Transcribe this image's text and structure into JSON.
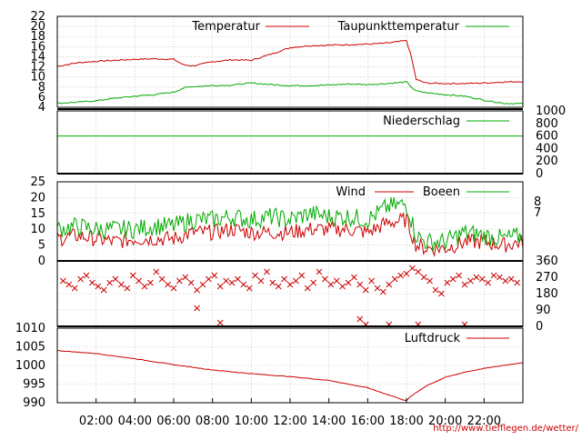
{
  "chart_data": [
    {
      "type": "line",
      "panel": "temperature",
      "ylim": [
        4,
        22
      ],
      "yticks": [
        "4",
        "6",
        "8",
        "10",
        "12",
        "14",
        "16",
        "18",
        "20",
        "22"
      ],
      "grid": true,
      "legend_position": "top-right",
      "x": [
        "00:00",
        "01:00",
        "02:00",
        "03:00",
        "04:00",
        "05:00",
        "06:00",
        "06:30",
        "07:00",
        "08:00",
        "09:00",
        "10:00",
        "11:00",
        "12:00",
        "13:00",
        "14:00",
        "15:00",
        "16:00",
        "17:00",
        "18:00",
        "18:15",
        "18:30",
        "19:00",
        "20:00",
        "21:00",
        "22:00",
        "23:00",
        "24:00"
      ],
      "series": [
        {
          "name": "Temperatur",
          "color": "#cc0000",
          "values": [
            12.1,
            12.8,
            13.1,
            13.3,
            13.5,
            13.6,
            13.5,
            12.4,
            12.2,
            13.0,
            13.4,
            13.3,
            14.5,
            15.8,
            16.2,
            16.3,
            16.4,
            16.5,
            16.7,
            17.2,
            14.0,
            9.5,
            8.8,
            8.7,
            8.7,
            8.8,
            9.0,
            9.1
          ]
        },
        {
          "name": "Taupunkttemperatur",
          "color": "#00aa00",
          "values": [
            4.8,
            5.0,
            5.3,
            5.8,
            6.2,
            6.5,
            7.0,
            7.8,
            8.1,
            8.3,
            8.4,
            8.8,
            8.5,
            8.3,
            8.3,
            8.4,
            8.6,
            8.5,
            8.7,
            9.0,
            8.0,
            7.2,
            6.9,
            6.5,
            6.2,
            5.4,
            4.8,
            4.7
          ]
        }
      ]
    },
    {
      "type": "line",
      "panel": "precipitation",
      "ylim": [
        0,
        1000
      ],
      "yticks": [
        "0",
        "200",
        "400",
        "600",
        "800",
        "1000"
      ],
      "grid": false,
      "legend_position": "top-right",
      "x": [
        "00:00",
        "24:00"
      ],
      "series": [
        {
          "name": "Niederschlag",
          "color": "#00aa00",
          "values": [
            600,
            600
          ]
        }
      ]
    },
    {
      "type": "line",
      "panel": "wind",
      "ylim": [
        0,
        25
      ],
      "yticks": [
        "0",
        "5",
        "10",
        "15",
        "20",
        "25"
      ],
      "right_labels": [
        "8",
        "7"
      ],
      "grid": true,
      "legend_position": "top-right",
      "x": [
        "00:00",
        "01:00",
        "02:00",
        "03:00",
        "04:00",
        "05:00",
        "06:00",
        "07:00",
        "08:00",
        "09:00",
        "10:00",
        "11:00",
        "12:00",
        "13:00",
        "14:00",
        "15:00",
        "16:00",
        "17:00",
        "18:00",
        "18:30",
        "19:00",
        "20:00",
        "21:00",
        "22:00",
        "23:00",
        "24:00"
      ],
      "series": [
        {
          "name": "Wind",
          "color": "#cc0000",
          "values": [
            7,
            8,
            7,
            6,
            7,
            7,
            7,
            9,
            9,
            10,
            9,
            9,
            9,
            10,
            10,
            10,
            9,
            12,
            13,
            5,
            4,
            4,
            6,
            6,
            5,
            6
          ]
        },
        {
          "name": "Boeen",
          "color": "#00aa00",
          "values": [
            10,
            11,
            10,
            10,
            10,
            11,
            11,
            13,
            13,
            14,
            13,
            14,
            13,
            15,
            14,
            14,
            13,
            17,
            18,
            8,
            6,
            6,
            9,
            8,
            7,
            8
          ]
        }
      ]
    },
    {
      "type": "scatter",
      "panel": "wind-direction",
      "ylim": [
        0,
        360
      ],
      "yticks_right": [
        "0",
        "90",
        "180",
        "270",
        "360"
      ],
      "series": [
        {
          "name": "",
          "color": "#cc0000",
          "x": [
            0.3,
            0.6,
            0.9,
            1.2,
            1.5,
            1.8,
            2.1,
            2.4,
            2.7,
            3.0,
            3.3,
            3.6,
            3.9,
            4.2,
            4.5,
            4.8,
            5.1,
            5.4,
            5.7,
            6.0,
            6.3,
            6.6,
            6.9,
            7.2,
            7.5,
            7.8,
            8.1,
            8.4,
            8.7,
            9.0,
            9.3,
            9.6,
            9.9,
            10.2,
            10.5,
            10.8,
            11.1,
            11.4,
            11.7,
            12.0,
            12.3,
            12.6,
            12.9,
            13.2,
            13.5,
            13.8,
            14.1,
            14.4,
            14.7,
            15.0,
            15.3,
            15.6,
            15.9,
            16.2,
            16.5,
            16.8,
            17.1,
            17.4,
            17.7,
            18.0,
            18.3,
            18.6,
            18.9,
            19.2,
            19.5,
            19.8,
            20.1,
            20.4,
            20.7,
            21.0,
            21.3,
            21.6,
            21.9,
            22.2,
            22.5,
            22.8,
            23.1,
            23.4,
            23.7,
            8.4,
            15.6,
            15.9,
            17.1,
            18.6,
            21.0,
            7.2
          ],
          "y": [
            250,
            230,
            210,
            260,
            280,
            240,
            220,
            200,
            240,
            260,
            230,
            210,
            280,
            250,
            220,
            240,
            300,
            260,
            230,
            210,
            250,
            270,
            240,
            200,
            230,
            260,
            280,
            220,
            250,
            240,
            260,
            230,
            210,
            280,
            250,
            300,
            240,
            220,
            260,
            230,
            250,
            280,
            210,
            240,
            300,
            260,
            230,
            250,
            220,
            240,
            270,
            230,
            200,
            250,
            210,
            190,
            230,
            260,
            280,
            290,
            320,
            300,
            270,
            250,
            200,
            180,
            240,
            260,
            280,
            230,
            250,
            270,
            260,
            240,
            280,
            270,
            250,
            260,
            240,
            20,
            40,
            10,
            10,
            10,
            10,
            100
          ]
        }
      ]
    },
    {
      "type": "line",
      "panel": "pressure",
      "ylim": [
        990,
        1010
      ],
      "yticks": [
        "990",
        "995",
        "1000",
        "1005",
        "1010"
      ],
      "grid": true,
      "legend_position": "top-right",
      "x": [
        "00:00",
        "02:00",
        "04:00",
        "06:00",
        "08:00",
        "10:00",
        "12:00",
        "14:00",
        "16:00",
        "18:00",
        "18:10",
        "19:00",
        "20:00",
        "21:00",
        "22:00",
        "23:00",
        "24:00"
      ],
      "series": [
        {
          "name": "Luftdruck",
          "color": "#cc0000",
          "values": [
            1004.0,
            1003.2,
            1001.8,
            1000.2,
            998.8,
            997.8,
            997.0,
            996.0,
            994.0,
            990.5,
            991.5,
            994.5,
            996.8,
            998.2,
            999.2,
            1000.0,
            1000.8
          ]
        }
      ]
    }
  ],
  "xaxis": {
    "ticks": [
      "02:00",
      "04:00",
      "06:00",
      "08:00",
      "10:00",
      "12:00",
      "14:00",
      "16:00",
      "18:00",
      "20:00",
      "22:00"
    ],
    "tick_hours": [
      2,
      4,
      6,
      8,
      10,
      12,
      14,
      16,
      18,
      20,
      22
    ],
    "range_hours": [
      0,
      24
    ]
  },
  "credit": "http://www.tiefflegen.de/wetter/",
  "colors": {
    "temperature": "#cc0000",
    "dewpoint": "#00aa00",
    "grid": "#999999"
  }
}
